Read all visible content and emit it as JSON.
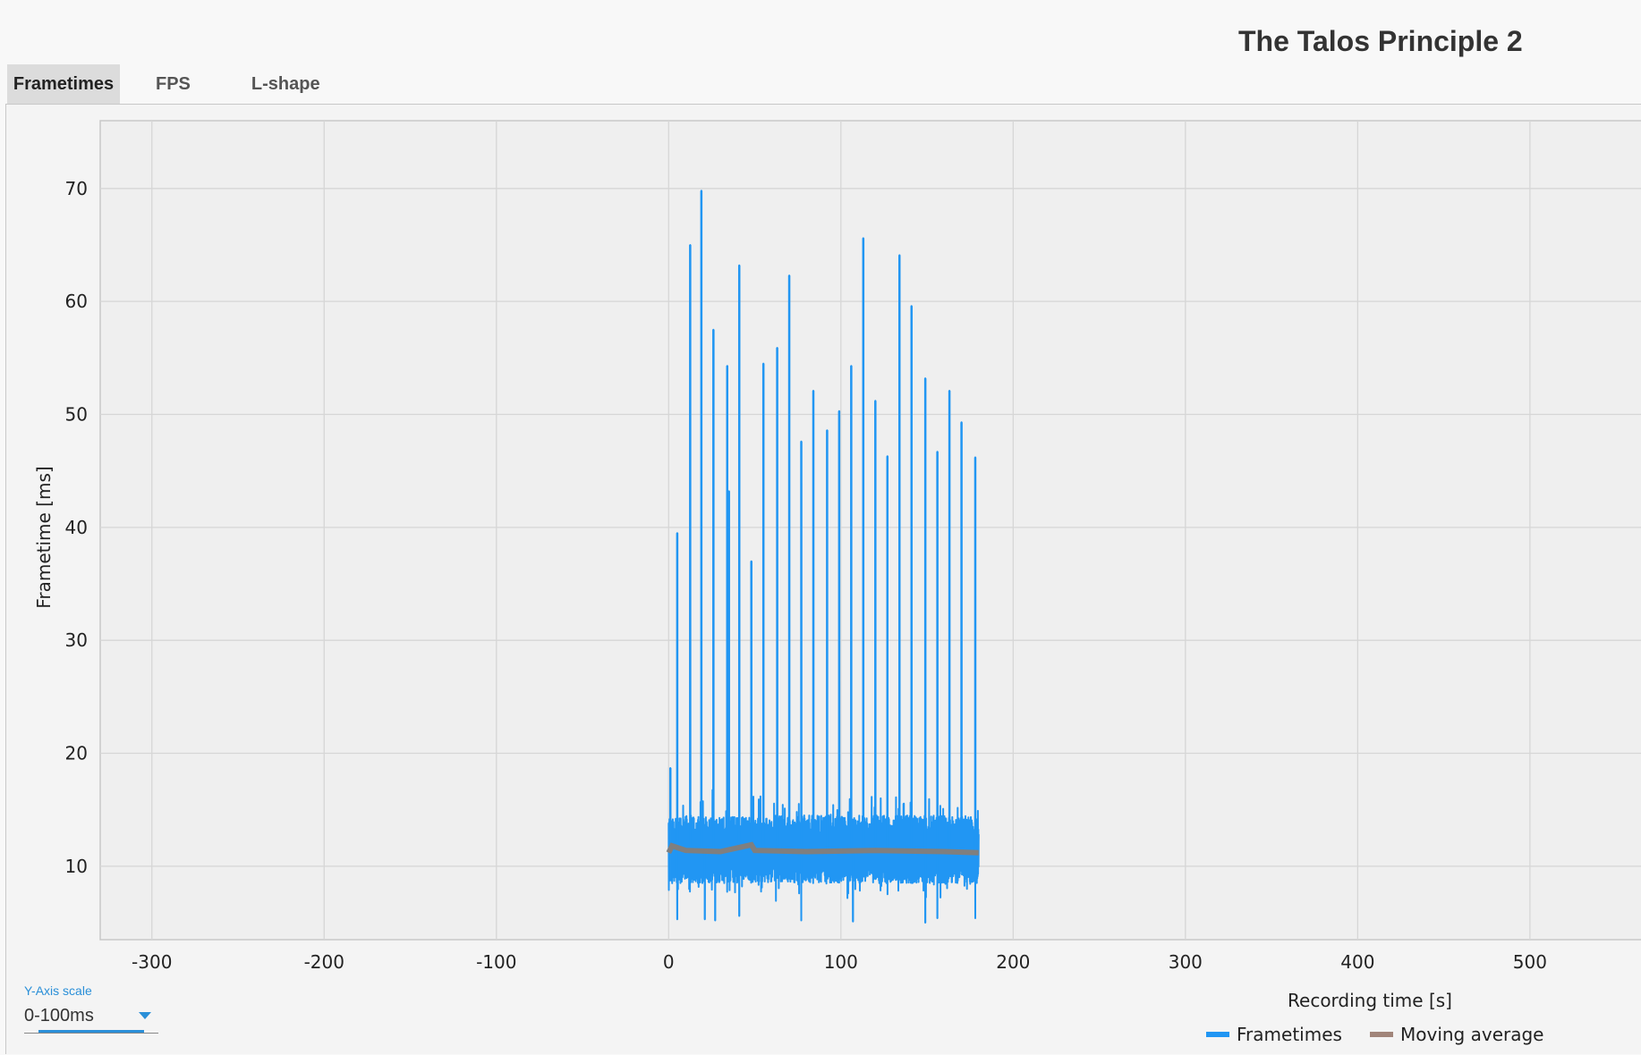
{
  "title": "The Talos Principle 2",
  "tabs": [
    {
      "label": "Frametimes",
      "active": true
    },
    {
      "label": "FPS",
      "active": false
    },
    {
      "label": "L-shape",
      "active": false
    }
  ],
  "y_axis_scale": {
    "label": "Y-Axis scale",
    "value": "0-100ms"
  },
  "colors": {
    "frametimes": "#2196f3",
    "moving_average": "#7f7f7f",
    "moving_average_legend": "#a1857a",
    "accent": "#2a8fd8",
    "grid": "#d6d6d6",
    "plot_background": "#efefef"
  },
  "chart_data": {
    "type": "line",
    "xlabel": "Recording time [s]",
    "ylabel": "Frametime [ms]",
    "xlim": [
      -330,
      565
    ],
    "ylim": [
      3.5,
      76
    ],
    "xticks": [
      -300,
      -200,
      -100,
      0,
      100,
      200,
      300,
      400,
      500
    ],
    "yticks": [
      10,
      20,
      30,
      40,
      50,
      60,
      70
    ],
    "grid": true,
    "legend_position": "bottom-right",
    "frametime_band": {
      "x_start": 0,
      "x_end": 180,
      "typical_low": 8.5,
      "typical_high": 14.5,
      "mean": 11.3
    },
    "series": [
      {
        "name": "Frametimes",
        "spikes": [
          {
            "x": 1,
            "y": 18.7
          },
          {
            "x": 5,
            "y": 39.5
          },
          {
            "x": 12.5,
            "y": 65
          },
          {
            "x": 19,
            "y": 69.8
          },
          {
            "x": 26,
            "y": 57.5
          },
          {
            "x": 34,
            "y": 54.3
          },
          {
            "x": 35,
            "y": 43.2
          },
          {
            "x": 41,
            "y": 63.2
          },
          {
            "x": 48,
            "y": 37
          },
          {
            "x": 55,
            "y": 54.5
          },
          {
            "x": 63,
            "y": 55.9
          },
          {
            "x": 70,
            "y": 62.3
          },
          {
            "x": 77,
            "y": 47.6
          },
          {
            "x": 84,
            "y": 52.1
          },
          {
            "x": 92,
            "y": 48.6
          },
          {
            "x": 99,
            "y": 50.3
          },
          {
            "x": 106,
            "y": 54.3
          },
          {
            "x": 113,
            "y": 65.6
          },
          {
            "x": 120,
            "y": 51.2
          },
          {
            "x": 127,
            "y": 46.3
          },
          {
            "x": 134,
            "y": 64.1
          },
          {
            "x": 141,
            "y": 59.6
          },
          {
            "x": 149,
            "y": 53.2
          },
          {
            "x": 156,
            "y": 46.7
          },
          {
            "x": 163,
            "y": 52.1
          },
          {
            "x": 170,
            "y": 49.3
          },
          {
            "x": 178,
            "y": 46.2
          }
        ],
        "dips": [
          {
            "x": 5,
            "y": 5.3
          },
          {
            "x": 21,
            "y": 5.3
          },
          {
            "x": 27,
            "y": 5.2
          },
          {
            "x": 41,
            "y": 5.6
          },
          {
            "x": 77,
            "y": 5.2
          },
          {
            "x": 107,
            "y": 5.1
          },
          {
            "x": 149,
            "y": 5.0
          },
          {
            "x": 156,
            "y": 5.4
          },
          {
            "x": 178,
            "y": 5.4
          }
        ]
      },
      {
        "name": "Moving average",
        "points": [
          {
            "x": 0,
            "y": 11.2
          },
          {
            "x": 2,
            "y": 11.8
          },
          {
            "x": 10,
            "y": 11.4
          },
          {
            "x": 30,
            "y": 11.3
          },
          {
            "x": 48,
            "y": 11.9
          },
          {
            "x": 50,
            "y": 11.4
          },
          {
            "x": 80,
            "y": 11.3
          },
          {
            "x": 120,
            "y": 11.4
          },
          {
            "x": 160,
            "y": 11.3
          },
          {
            "x": 180,
            "y": 11.2
          }
        ]
      }
    ]
  }
}
